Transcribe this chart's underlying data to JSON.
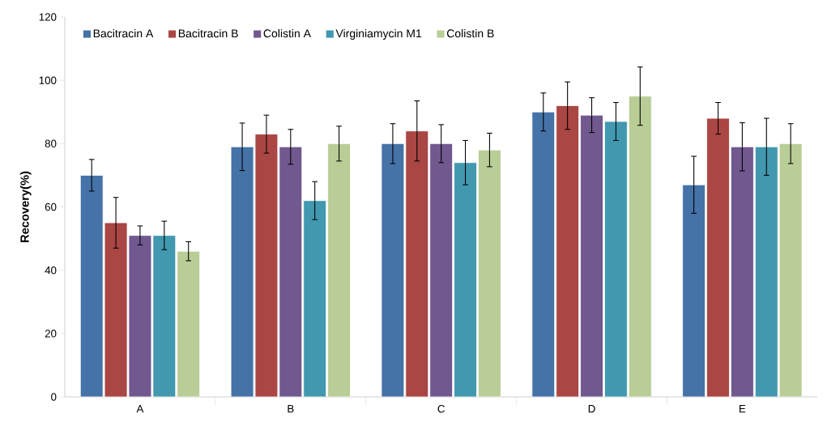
{
  "chart_data": {
    "type": "bar",
    "ylabel": "Recovery(%)",
    "categories": [
      "A",
      "B",
      "C",
      "D",
      "E"
    ],
    "series": [
      {
        "name": "Bacitracin A",
        "color": "#4572a7",
        "values": [
          70,
          79,
          80,
          90,
          67
        ],
        "errors": [
          5,
          7.5,
          6.3,
          6,
          9
        ]
      },
      {
        "name": "Bacitracin B",
        "color": "#aa4643",
        "values": [
          55,
          83,
          84,
          92,
          88
        ],
        "errors": [
          8,
          6,
          9.5,
          7.5,
          5
        ]
      },
      {
        "name": "Colistin A",
        "color": "#71588f",
        "values": [
          51,
          79,
          80,
          89,
          79
        ],
        "errors": [
          3,
          5.5,
          6,
          5.5,
          7.6
        ]
      },
      {
        "name": "Virginiamycin M1",
        "color": "#4198af",
        "values": [
          51,
          62,
          74,
          87,
          79
        ],
        "errors": [
          4.5,
          6,
          7,
          6,
          9
        ]
      },
      {
        "name": "Colistin B",
        "color": "#b9cd96",
        "values": [
          46,
          80,
          78,
          95,
          80
        ],
        "errors": [
          3,
          5.5,
          5.3,
          9.2,
          6.3
        ]
      }
    ],
    "ylim": [
      0,
      120
    ],
    "yticks": [
      0,
      20,
      40,
      60,
      80,
      100,
      120
    ],
    "legend": "top left"
  }
}
